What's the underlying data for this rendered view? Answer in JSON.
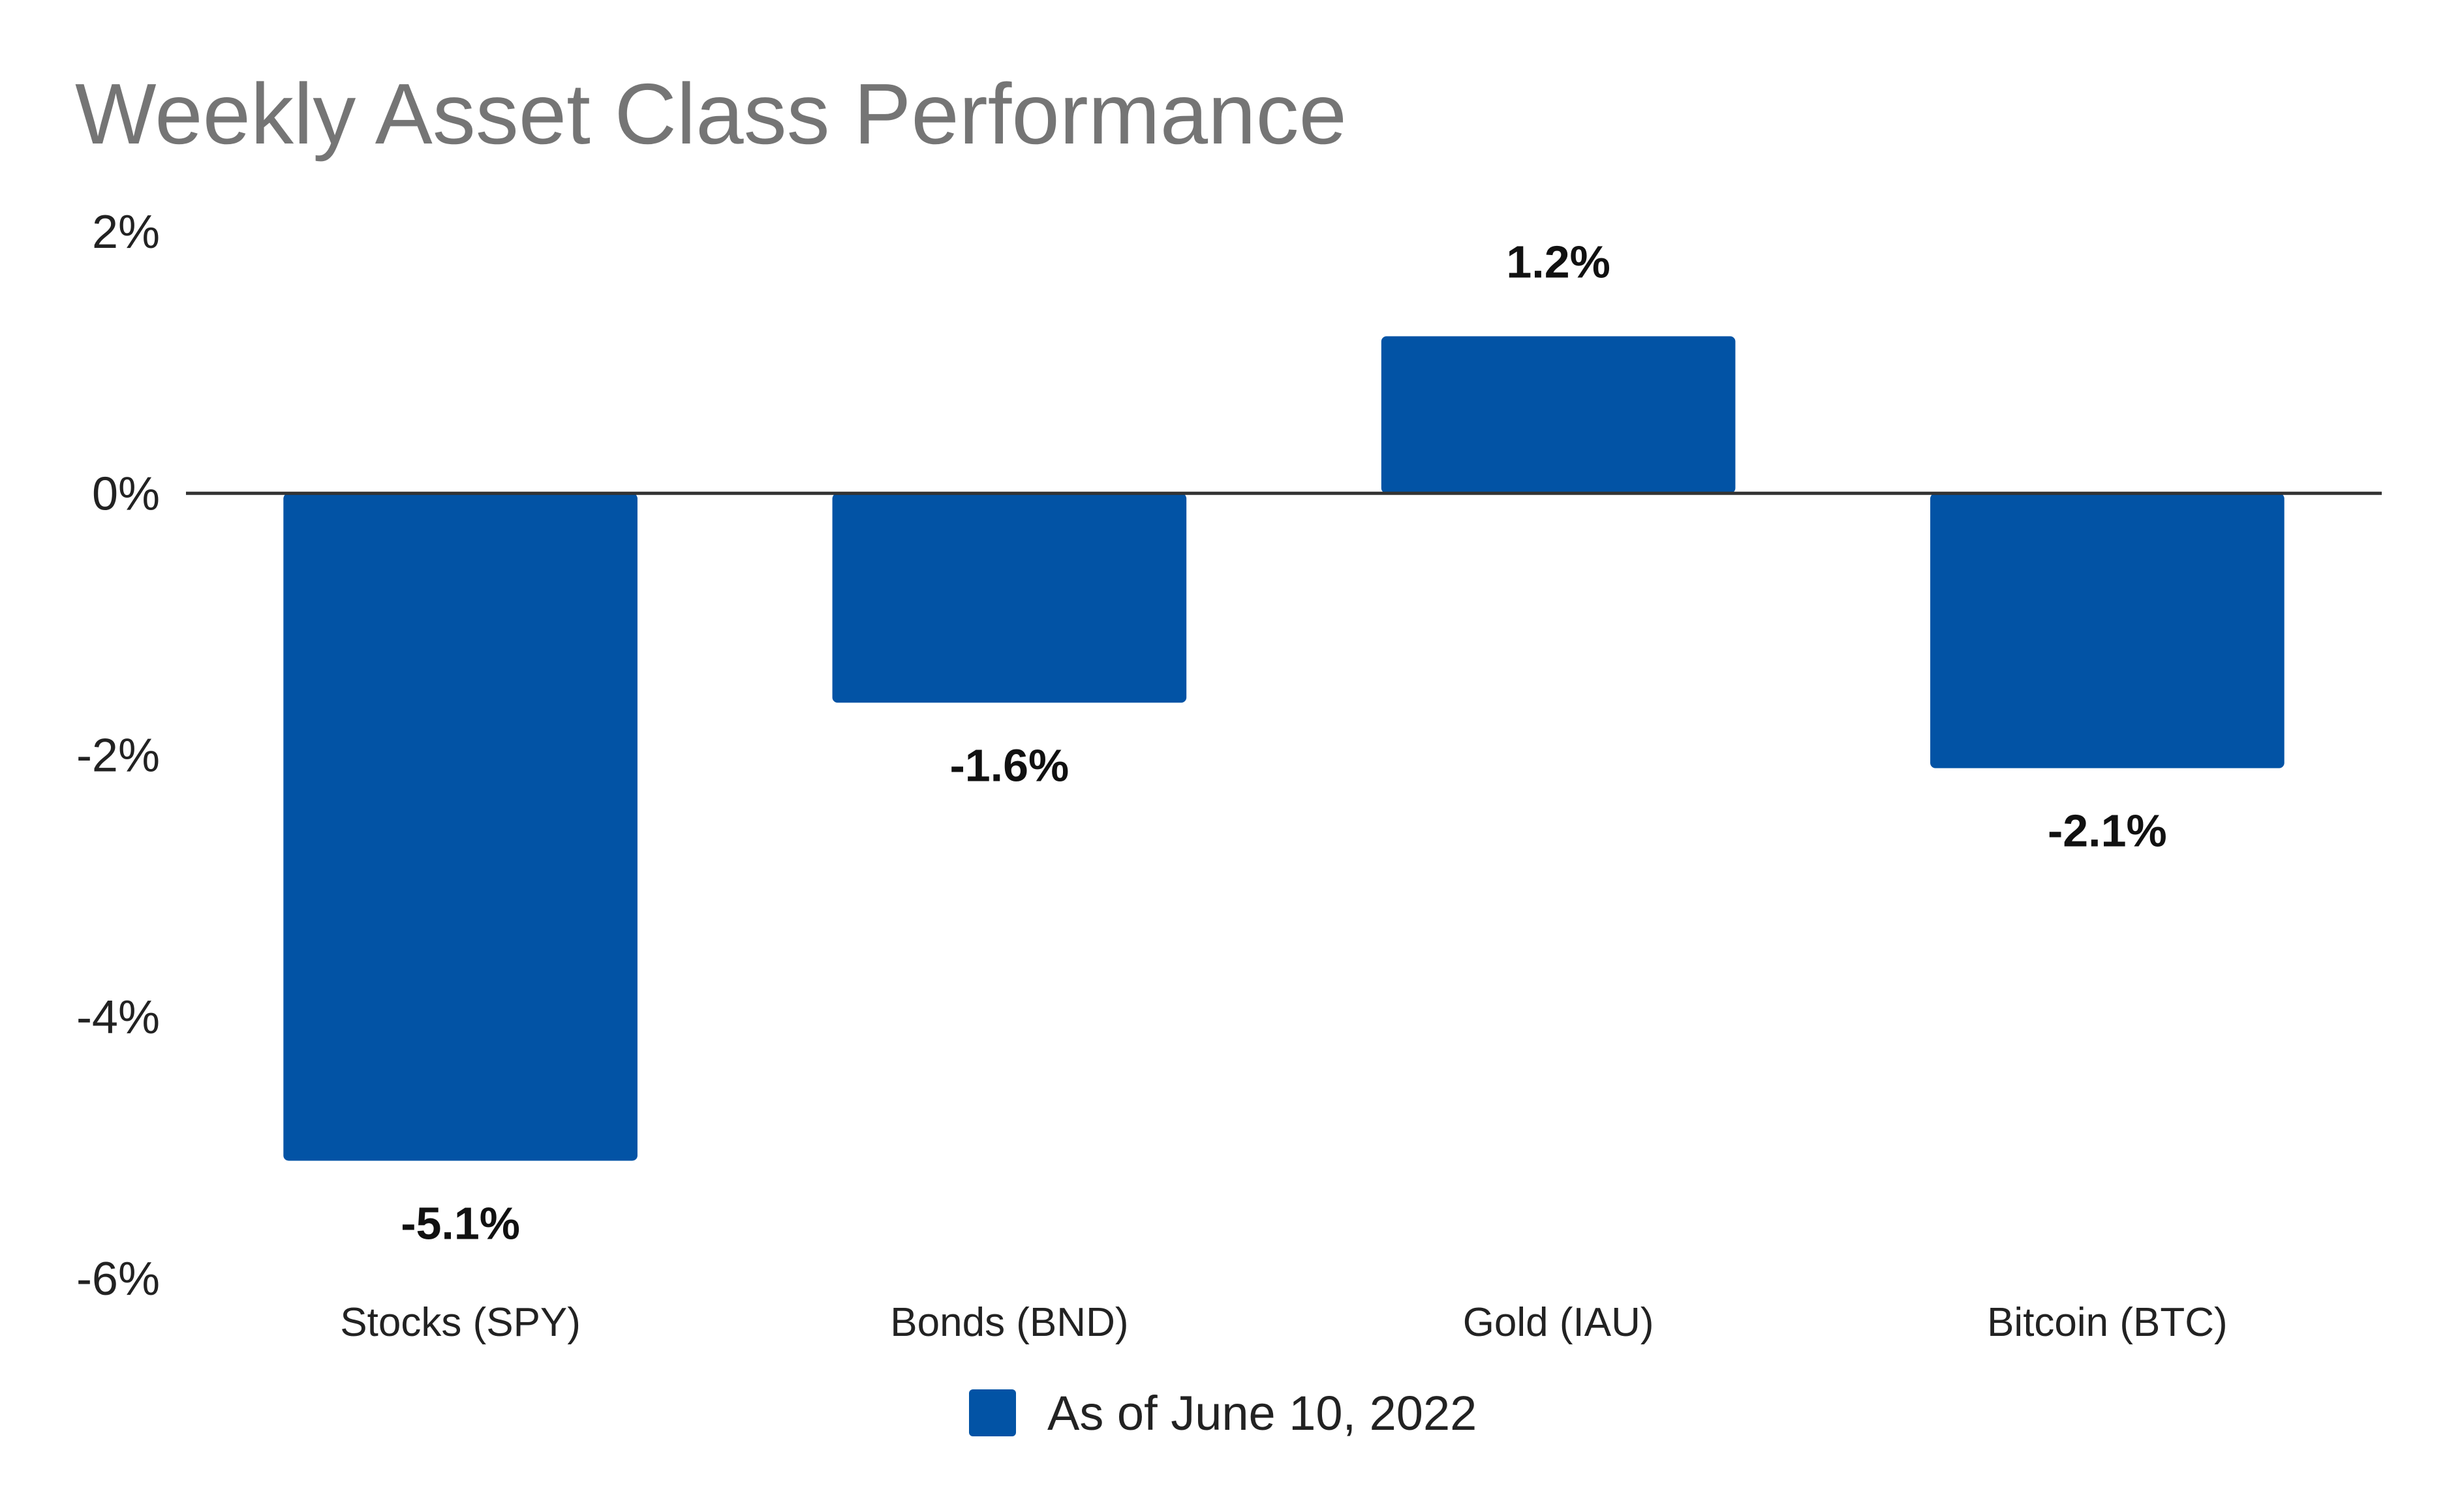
{
  "chart_data": {
    "type": "bar",
    "title": "Weekly Asset Class Performance",
    "xlabel": "",
    "ylabel": "",
    "categories": [
      "Stocks (SPY)",
      "Bonds (BND)",
      "Gold (IAU)",
      "Bitcoin (BTC)"
    ],
    "series": [
      {
        "name": "As of June 10, 2022",
        "values": [
          -5.1,
          -1.6,
          1.2,
          -2.1
        ],
        "data_labels": [
          "-5.1%",
          "-1.6%",
          "1.2%",
          "-2.1%"
        ],
        "color": "#0253A5"
      }
    ],
    "ylim": [
      -6,
      2
    ],
    "yticks": [
      2,
      0,
      -2,
      -4,
      -6
    ],
    "ytick_labels": [
      "2%",
      "0%",
      "-2%",
      "-4%",
      "-6%"
    ],
    "grid": false,
    "zero_line": true,
    "legend_position": "bottom"
  },
  "colors": {
    "bar": "#0253A5",
    "title": "#757575",
    "text": "#222222",
    "zero_line": "#333333"
  }
}
